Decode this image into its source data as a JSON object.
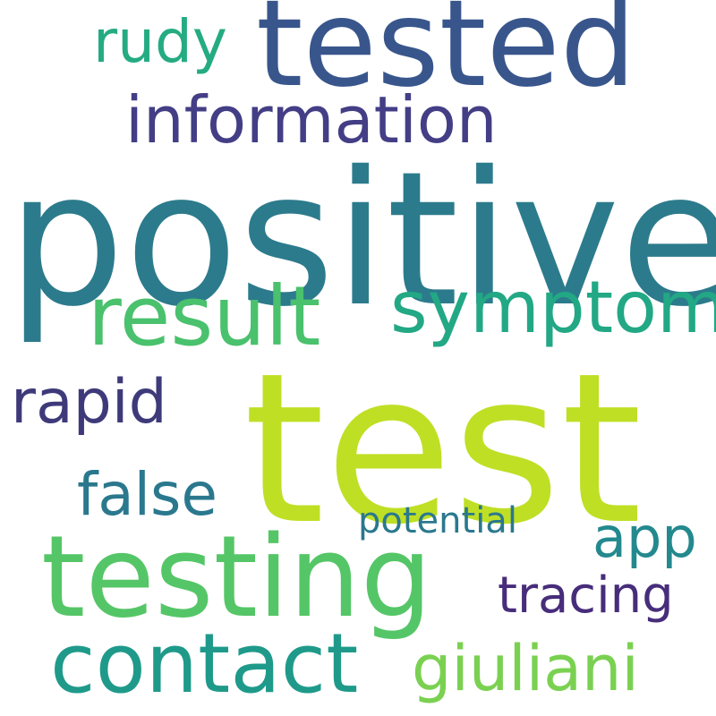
{
  "wordcloud": {
    "words": [
      {
        "key": "positive",
        "text": "positive",
        "color": "#2c7b8c"
      },
      {
        "key": "test",
        "text": "test",
        "color": "#bfdf25"
      },
      {
        "key": "tested",
        "text": "tested",
        "color": "#39568c"
      },
      {
        "key": "testing",
        "text": "testing",
        "color": "#55c667"
      },
      {
        "key": "result",
        "text": "result",
        "color": "#4ac16d"
      },
      {
        "key": "symptom",
        "text": "symptom",
        "color": "#22a884"
      },
      {
        "key": "contact",
        "text": "contact",
        "color": "#1f9a8a"
      },
      {
        "key": "information",
        "text": "information",
        "color": "#433e85"
      },
      {
        "key": "rudy",
        "text": "rudy",
        "color": "#25ab82"
      },
      {
        "key": "rapid",
        "text": "rapid",
        "color": "#3e3a7a"
      },
      {
        "key": "false",
        "text": "false",
        "color": "#2a788e"
      },
      {
        "key": "app",
        "text": "app",
        "color": "#23898e"
      },
      {
        "key": "tracing",
        "text": "tracing",
        "color": "#472d7b"
      },
      {
        "key": "giuliani",
        "text": "giuliani",
        "color": "#7ad151"
      },
      {
        "key": "potential",
        "text": "potential",
        "color": "#2a788e"
      }
    ]
  }
}
